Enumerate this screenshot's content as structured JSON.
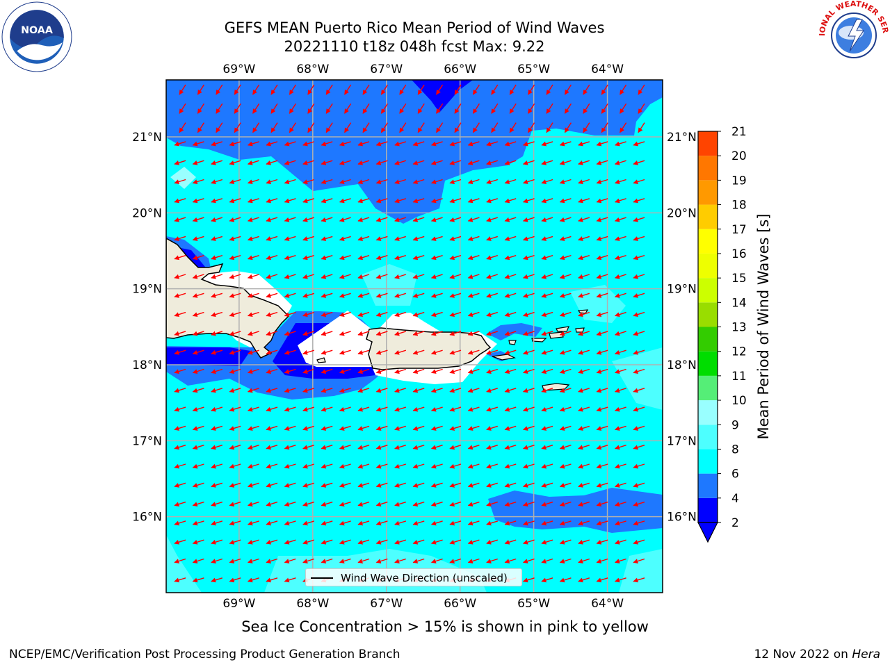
{
  "title": {
    "line1": "GEFS MEAN Puerto Rico Mean Period of Wind Waves",
    "line2": "20221110 t18z 048h fcst   Max: 9.22"
  },
  "logos": {
    "left": "NOAA",
    "right": "NATIONAL WEATHER SERVICE"
  },
  "map": {
    "lon_labels": [
      "69°W",
      "68°W",
      "67°W",
      "66°W",
      "65°W",
      "64°W"
    ],
    "lat_labels": [
      "21°N",
      "20°N",
      "19°N",
      "18°N",
      "17°N",
      "16°N"
    ],
    "lon_values": [
      -69,
      -68,
      -67,
      -66,
      -65,
      -64
    ],
    "lat_values": [
      21,
      20,
      19,
      18,
      17,
      16
    ],
    "extent": {
      "lon_min": -69.99,
      "lon_max": -63.25,
      "lat_min": 15.0,
      "lat_max": 21.75
    },
    "arrow_color": "#ff0000",
    "wind_direction": "from east-northeast, flowing west-southwest",
    "legend_label": "Wind Wave Direction (unscaled)"
  },
  "colorbar": {
    "label": "Mean Period of Wind Waves [s]",
    "ticks": [
      "2",
      "4",
      "6",
      "8",
      "9",
      "10",
      "11",
      "12",
      "13",
      "14",
      "15",
      "16",
      "17",
      "18",
      "19",
      "20",
      "21"
    ],
    "colors": [
      "#0000ff",
      "#1e78ff",
      "#00ffff",
      "#4dffff",
      "#99ffff",
      "#55ee77",
      "#00dd00",
      "#33cc00",
      "#99dd00",
      "#ccff00",
      "#eeff00",
      "#ffff00",
      "#ffcc00",
      "#ff9900",
      "#ff7700",
      "#ff4400",
      "#ff1111"
    ],
    "under_color": "#0000ff"
  },
  "caption": "Sea Ice Concentration > 15% is shown in pink to yellow",
  "footer": {
    "left": "NCEP/EMC/Verification Post Processing Product Generation Branch",
    "right_date": "12 Nov 2022 on ",
    "right_machine": "Hera"
  }
}
